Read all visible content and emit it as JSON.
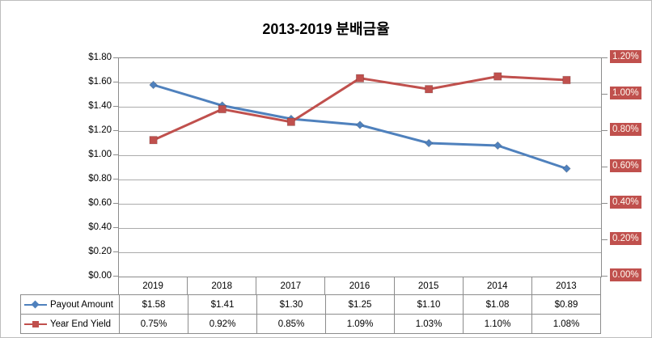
{
  "title": "2013-2019 분배금율",
  "chart_data": {
    "type": "line",
    "categories": [
      "2019",
      "2018",
      "2017",
      "2016",
      "2015",
      "2014",
      "2013"
    ],
    "series": [
      {
        "name": "Payout Amount",
        "axis": "left",
        "marker": "diamond",
        "color": "#4F81BD",
        "values": [
          1.58,
          1.41,
          1.3,
          1.25,
          1.1,
          1.08,
          0.89
        ],
        "labels": [
          "$1.58",
          "$1.41",
          "$1.30",
          "$1.25",
          "$1.10",
          "$1.08",
          "$0.89"
        ]
      },
      {
        "name": "Year End Yield",
        "axis": "right",
        "marker": "square",
        "color": "#C0504D",
        "values": [
          0.75,
          0.92,
          0.85,
          1.09,
          1.03,
          1.1,
          1.08
        ],
        "labels": [
          "0.75%",
          "0.92%",
          "0.85%",
          "1.09%",
          "1.03%",
          "1.10%",
          "1.08%"
        ]
      }
    ],
    "left_axis": {
      "min": 0,
      "max": 1.8,
      "step": 0.2,
      "ticks": [
        "$1.80",
        "$1.60",
        "$1.40",
        "$1.20",
        "$1.00",
        "$0.80",
        "$0.60",
        "$0.40",
        "$0.20",
        "$0.00"
      ]
    },
    "right_axis": {
      "min": 0,
      "max": 1.2,
      "step": 0.2,
      "ticks": [
        "1.20%",
        "1.00%",
        "0.80%",
        "0.60%",
        "0.40%",
        "0.20%",
        "0.00%"
      ],
      "label_bg": "#C0504D",
      "label_text_color": "#FFFBF2"
    },
    "grid": true,
    "legend_position": "table-left"
  },
  "colors": {
    "series_blue": "#4F81BD",
    "series_red": "#C0504D",
    "gridline": "#ABABAB",
    "axis_border": "#8C8C8C",
    "chart_border": "#BDBDBD",
    "background": "#FFFFFF"
  }
}
